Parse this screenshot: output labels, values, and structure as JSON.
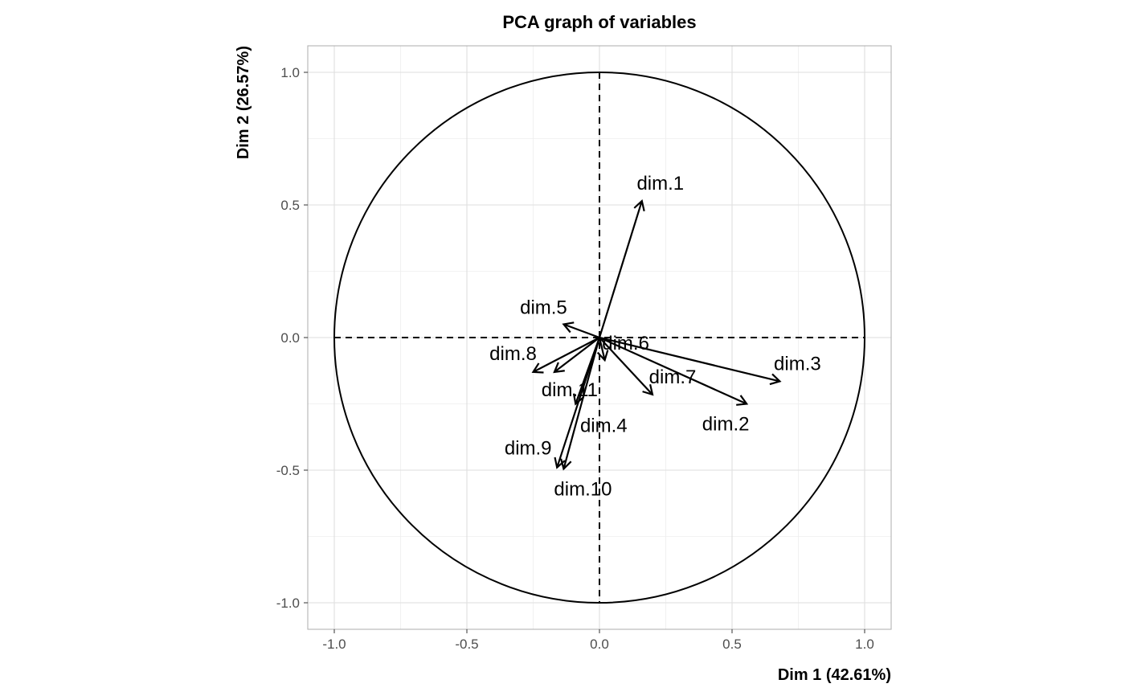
{
  "chart_data": {
    "type": "scatter",
    "subtype": "pca-correlation-circle",
    "title": "PCA graph of variables",
    "xlabel": "Dim 1 (42.61%)",
    "ylabel": "Dim 2 (26.57%)",
    "xlim": [
      -1.1,
      1.1
    ],
    "ylim": [
      -1.1,
      1.1
    ],
    "xticks": [
      -1.0,
      -0.5,
      0.0,
      0.5,
      1.0
    ],
    "yticks": [
      -1.0,
      -0.5,
      0.0,
      0.5,
      1.0
    ],
    "xtick_labels": [
      "-1.0",
      "-0.5",
      "0.0",
      "0.5",
      "1.0"
    ],
    "ytick_labels": [
      "-1.0",
      "-0.5",
      "0.0",
      "0.5",
      "1.0"
    ],
    "grid": true,
    "unit_circle": true,
    "variables": [
      {
        "name": "dim.1",
        "x": 0.16,
        "y": 0.515
      },
      {
        "name": "dim.2",
        "x": 0.555,
        "y": -0.25
      },
      {
        "name": "dim.3",
        "x": 0.68,
        "y": -0.165
      },
      {
        "name": "dim.4",
        "x": -0.09,
        "y": -0.25
      },
      {
        "name": "dim.5",
        "x": -0.135,
        "y": 0.05
      },
      {
        "name": "dim.6",
        "x": 0.02,
        "y": -0.085
      },
      {
        "name": "dim.7",
        "x": 0.2,
        "y": -0.215
      },
      {
        "name": "dim.8",
        "x": -0.25,
        "y": -0.13
      },
      {
        "name": "dim.9",
        "x": -0.16,
        "y": -0.49
      },
      {
        "name": "dim.10",
        "x": -0.135,
        "y": -0.495
      },
      {
        "name": "dim.11",
        "x": -0.17,
        "y": -0.13
      }
    ],
    "colors": {
      "arrows": "#000000",
      "grid_major": "#dedede",
      "grid_minor": "#eeeeee",
      "border": "#b3b3b3",
      "tick_text": "#4d4d4d"
    }
  }
}
